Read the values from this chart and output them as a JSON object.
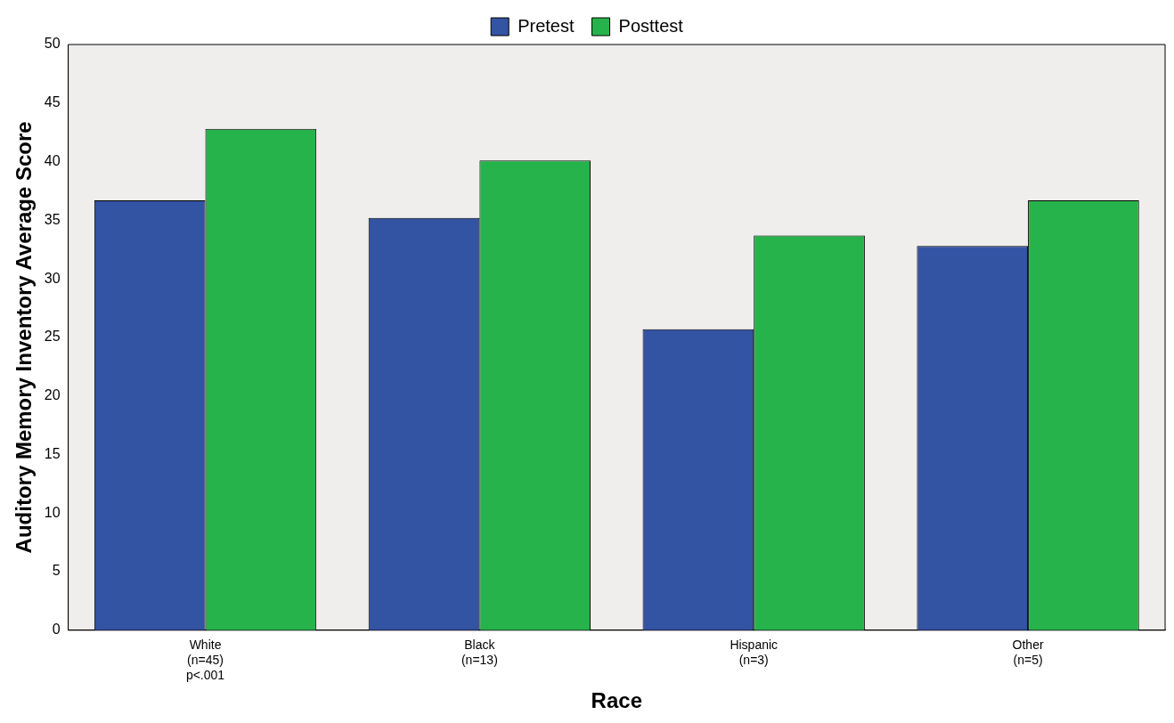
{
  "chart_data": {
    "type": "bar",
    "xlabel": "Race",
    "ylabel": "Auditory Memory Inventory Average Score",
    "categories": [
      "White\n(n=45)\np<.001",
      "Black\n(n=13)",
      "Hispanic\n(n=3)",
      "Other\n(n=5)"
    ],
    "series": [
      {
        "name": "Pretest",
        "color": "#3353a3",
        "values": [
          36.7,
          35.2,
          25.7,
          32.8
        ]
      },
      {
        "name": "Posttest",
        "color": "#27b34b",
        "values": [
          42.8,
          40.1,
          33.7,
          36.7
        ]
      }
    ],
    "ylim": [
      0,
      50
    ],
    "yticks": [
      0,
      5,
      10,
      15,
      20,
      25,
      30,
      35,
      40,
      45,
      50
    ],
    "grid": false,
    "legend": "top"
  }
}
